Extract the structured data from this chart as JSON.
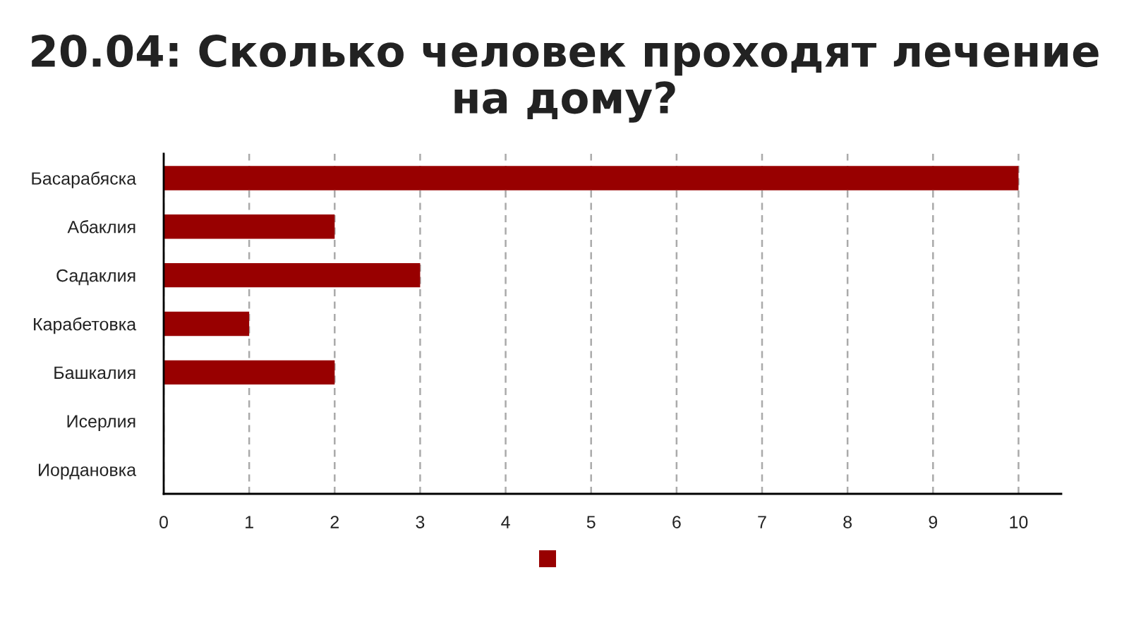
{
  "chart_data": {
    "type": "bar",
    "orientation": "horizontal",
    "title": "20.04: Сколько человек проходят лечение на дому?",
    "categories": [
      "Басарабяска",
      "Абаклия",
      "Садаклия",
      "Карабетовка",
      "Башкалия",
      "Исерлия",
      "Иордановка"
    ],
    "series": [
      {
        "color": "#980000",
        "values": [
          10,
          2,
          3,
          1,
          2,
          0,
          0
        ]
      }
    ],
    "xlim": [
      0,
      10.5
    ],
    "xticks": [
      0,
      1,
      2,
      3,
      4,
      5,
      6,
      7,
      8,
      9,
      10
    ],
    "grid": "x"
  }
}
